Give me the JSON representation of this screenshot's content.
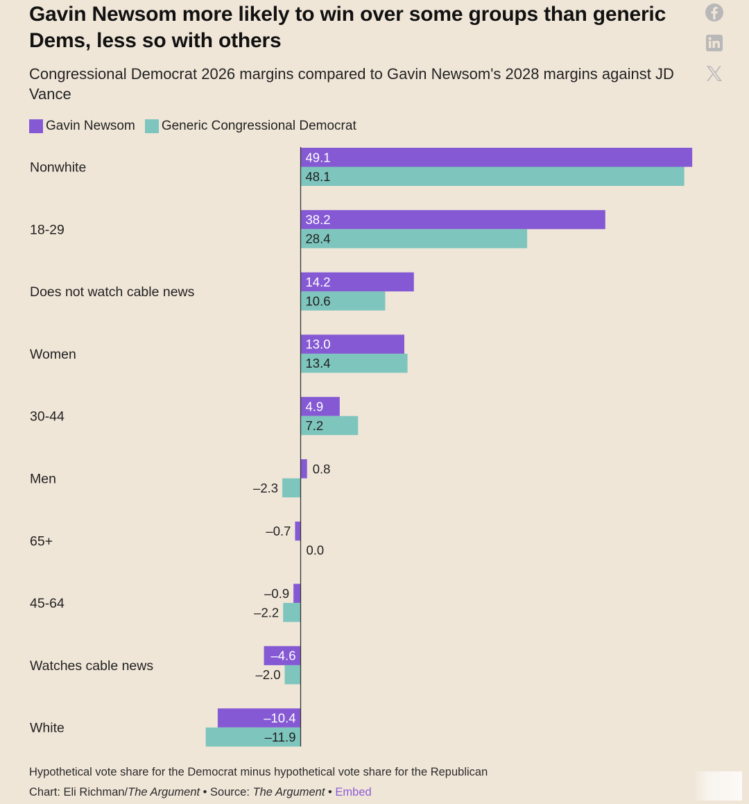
{
  "header": {
    "title": "Gavin Newsom more likely to win over some groups than generic Dems, less so with others",
    "subtitle": "Congressional Democrat 2026 margins compared to Gavin Newsom's 2028 margins against JD Vance"
  },
  "share": {
    "facebook_icon": "facebook-icon",
    "linkedin_icon": "linkedin-icon",
    "x_icon": "x-icon"
  },
  "colors": {
    "newsom": "#8559d4",
    "generic": "#7ec5bd",
    "axis": "#333333",
    "background": "#f0e6d8"
  },
  "chart_data": {
    "type": "bar",
    "orientation": "horizontal",
    "title": "Gavin Newsom more likely to win over some groups than generic Dems, less so with others",
    "subtitle": "Congressional Democrat 2026 margins compared to Gavin Newsom's 2028 margins against JD Vance",
    "xlabel": "",
    "ylabel": "",
    "legend_position": "top-left",
    "grid": false,
    "xlim": [
      -12,
      50
    ],
    "categories": [
      "Nonwhite",
      "18-29",
      "Does not watch cable news",
      "Women",
      "30-44",
      "Men",
      "65+",
      "45-64",
      "Watches cable news",
      "White"
    ],
    "series": [
      {
        "name": "Gavin Newsom",
        "values": [
          49.1,
          38.2,
          14.2,
          13.0,
          4.9,
          0.8,
          -0.7,
          -0.9,
          -4.6,
          -10.4
        ],
        "labels": [
          "49.1",
          "38.2",
          "14.2",
          "13.0",
          "4.9",
          "0.8",
          "–0.7",
          "–0.9",
          "–4.6",
          "–10.4"
        ]
      },
      {
        "name": "Generic Congressional Democrat",
        "values": [
          48.1,
          28.4,
          10.6,
          13.4,
          7.2,
          -2.3,
          0.0,
          -2.2,
          -2.0,
          -11.9
        ],
        "labels": [
          "48.1",
          "28.4",
          "10.6",
          "13.4",
          "7.2",
          "–2.3",
          "0.0",
          "–2.2",
          "–2.0",
          "–11.9"
        ]
      }
    ]
  },
  "footer": {
    "note": "Hypothetical vote share for the Democrat minus hypothetical vote share for the Republican",
    "chart_prefix": "Chart: Eli Richman/",
    "chart_pub": "The Argument",
    "source_prefix": " • Source: ",
    "source_pub": "The Argument",
    "sep": " • ",
    "embed": "Embed"
  }
}
